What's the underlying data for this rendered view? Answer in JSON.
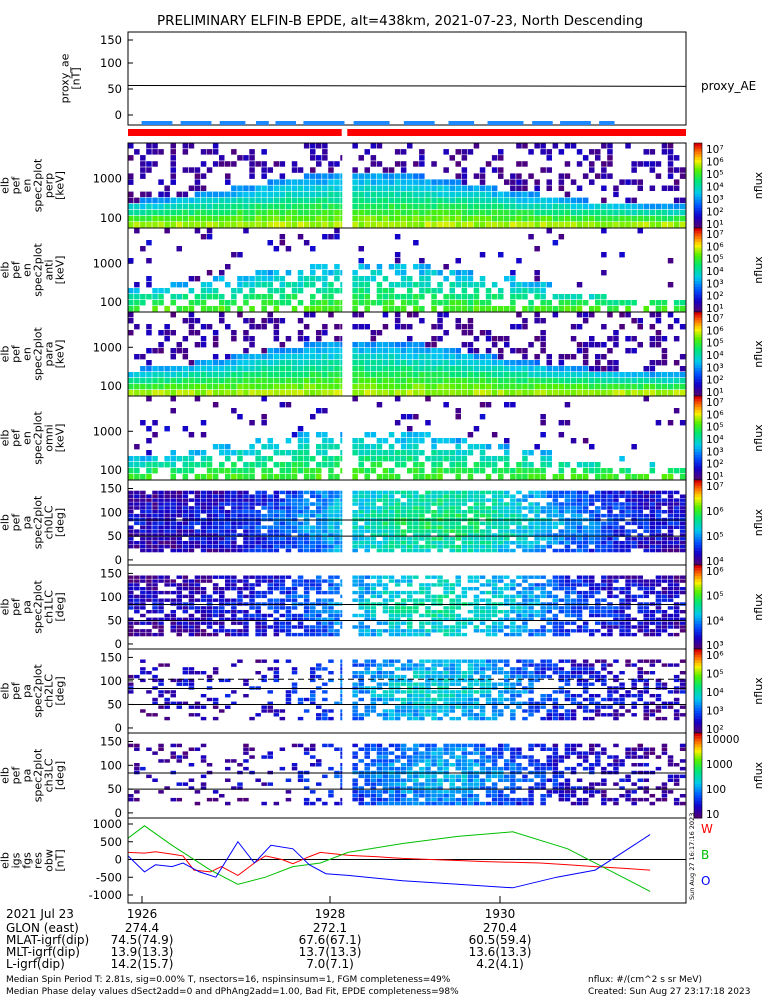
{
  "title": "PRELIMINARY ELFIN-B EPDE, alt=438km, 2021-07-23, North Descending",
  "colors": {
    "red_bar": "#ff0000",
    "blue_bar": "#1e88ff",
    "ae_line": "#000000"
  },
  "chart_data": [
    {
      "id": "proxy_ae",
      "type": "line",
      "ylabel_lines": [
        "proxy_ae",
        "[nT]"
      ],
      "legend": "proxy_AE",
      "y_ticks": [
        "150",
        "100",
        "50",
        "0"
      ],
      "ylim": [
        -15,
        155
      ],
      "series": [
        {
          "values_start": 52,
          "values_end": 50
        }
      ]
    },
    {
      "id": "pef_en_perp",
      "type": "heatmap",
      "ylabel_lines": [
        "elb",
        "pef",
        "en",
        "spec2plot",
        "perp",
        "[keV]"
      ],
      "y_ticks": [
        "1000",
        "100"
      ],
      "colorbar_ticks": [
        "10⁷",
        "10⁶",
        "10⁵",
        "10⁴",
        "10³",
        "10²",
        "10¹"
      ],
      "colorbar_label": "nflux"
    },
    {
      "id": "pef_en_anti",
      "type": "heatmap",
      "ylabel_lines": [
        "elb",
        "pef",
        "en",
        "spec2plot",
        "anti",
        "[keV]"
      ],
      "y_ticks": [
        "1000",
        "100"
      ],
      "colorbar_ticks": [
        "10⁷",
        "10⁶",
        "10⁵",
        "10⁴",
        "10³",
        "10²",
        "10¹"
      ],
      "colorbar_label": "nflux"
    },
    {
      "id": "pef_en_para",
      "type": "heatmap",
      "ylabel_lines": [
        "elb",
        "pef",
        "en",
        "spec2plot",
        "para",
        "[keV]"
      ],
      "y_ticks": [
        "1000",
        "100"
      ],
      "colorbar_ticks": [
        "10⁷",
        "10⁶",
        "10⁵",
        "10⁴",
        "10³",
        "10²",
        "10¹"
      ],
      "colorbar_label": "nflux"
    },
    {
      "id": "pef_en_omni",
      "type": "heatmap",
      "ylabel_lines": [
        "elb",
        "pef",
        "en",
        "spec2plot",
        "omni",
        "[keV]"
      ],
      "y_ticks": [
        "1000",
        "100"
      ],
      "colorbar_ticks": [
        "10⁷",
        "10⁶",
        "10⁵",
        "10⁴",
        "10³",
        "10²",
        "10¹"
      ],
      "colorbar_label": "nflux"
    },
    {
      "id": "pa_ch0",
      "type": "heatmap",
      "ylabel_lines": [
        "elb",
        "pef",
        "pa",
        "spec2plot",
        "ch0LC",
        "[deg]"
      ],
      "y_ticks": [
        "150",
        "100",
        "50",
        "0"
      ],
      "colorbar_ticks": [
        "10⁷",
        "10⁶",
        "10⁵",
        "10⁴"
      ],
      "colorbar_label": "nflux"
    },
    {
      "id": "pa_ch1",
      "type": "heatmap",
      "ylabel_lines": [
        "elb",
        "pef",
        "pa",
        "spec2plot",
        "ch1LC",
        "[deg]"
      ],
      "y_ticks": [
        "150",
        "100",
        "50",
        "0"
      ],
      "colorbar_ticks": [
        "10⁶",
        "10⁵",
        "10⁴",
        "10³"
      ],
      "colorbar_label": "nflux"
    },
    {
      "id": "pa_ch2",
      "type": "heatmap",
      "ylabel_lines": [
        "elb",
        "pef",
        "pa",
        "spec2plot",
        "ch2LC",
        "[deg]"
      ],
      "y_ticks": [
        "150",
        "100",
        "50",
        "0"
      ],
      "colorbar_ticks": [
        "10⁶",
        "10⁵",
        "10⁴",
        "10³",
        "10²"
      ],
      "colorbar_label": "nflux"
    },
    {
      "id": "pa_ch3",
      "type": "heatmap",
      "ylabel_lines": [
        "elb",
        "pef",
        "pa",
        "spec2plot",
        "ch3LC",
        "[deg]"
      ],
      "y_ticks": [
        "150",
        "100",
        "50",
        "0"
      ],
      "colorbar_ticks": [
        "10000",
        "1000",
        "100",
        "10"
      ],
      "colorbar_label": "nflux"
    },
    {
      "id": "dB",
      "type": "line",
      "ylabel_lines": [
        "elb",
        "igs",
        "fgs",
        "res",
        "obw",
        "[nT]"
      ],
      "y_ticks": [
        "1000",
        "500",
        "0",
        "-500",
        "-1000"
      ],
      "ylim": [
        -1300,
        1050
      ],
      "legend": [
        "W",
        "B",
        "O"
      ],
      "side_label": "Sun Aug 27 16:17:16 2023",
      "series": [
        {
          "name": "W",
          "color": "#ff0000",
          "x": [
            0.0,
            0.03,
            0.05,
            0.08,
            0.1,
            0.12,
            0.15,
            0.17,
            0.2,
            0.23,
            0.25,
            0.28,
            0.3,
            0.33,
            0.35,
            0.38,
            0.4,
            0.42,
            0.45,
            0.48,
            0.5,
            0.55,
            0.6,
            0.65,
            0.7,
            0.75,
            0.8,
            0.85,
            0.9,
            0.95
          ],
          "y": [
            200,
            180,
            220,
            150,
            100,
            -300,
            -350,
            -200,
            -450,
            -100,
            100,
            0,
            -120,
            80,
            200,
            150,
            120,
            100,
            80,
            50,
            30,
            0,
            -30,
            -60,
            -80,
            -100,
            -150,
            -200,
            -250,
            -300
          ]
        },
        {
          "name": "B",
          "color": "#00c000",
          "x": [
            0.0,
            0.03,
            0.08,
            0.15,
            0.2,
            0.25,
            0.3,
            0.35,
            0.4,
            0.5,
            0.6,
            0.7,
            0.8,
            0.95
          ],
          "y": [
            600,
            950,
            400,
            -300,
            -700,
            -500,
            -200,
            -100,
            200,
            450,
            650,
            780,
            300,
            -900
          ]
        },
        {
          "name": "O",
          "color": "#0000ff",
          "x": [
            0.0,
            0.03,
            0.05,
            0.08,
            0.1,
            0.13,
            0.16,
            0.2,
            0.23,
            0.26,
            0.3,
            0.33,
            0.36,
            0.4,
            0.5,
            0.6,
            0.7,
            0.78,
            0.85,
            0.9,
            0.95
          ],
          "y": [
            100,
            -350,
            -150,
            -200,
            -100,
            -350,
            -500,
            500,
            -100,
            400,
            300,
            -150,
            -400,
            -450,
            -600,
            -700,
            -800,
            -500,
            -300,
            200,
            700
          ]
        }
      ]
    }
  ],
  "time_axis": {
    "label": "2021 Jul 23",
    "ticks": [
      "1926",
      "1928",
      "1930"
    ],
    "rows": [
      {
        "label": "GLON (east)",
        "values": [
          "274.4",
          "272.1",
          "270.4"
        ]
      },
      {
        "label": "MLAT-igrf(dip)",
        "values": [
          "74.5(74.9)",
          "67.6(67.1)",
          "60.5(59.4)"
        ]
      },
      {
        "label": "MLT-igrf(dip)",
        "values": [
          "13.9(13.3)",
          "13.7(13.3)",
          "13.6(13.3)"
        ]
      },
      {
        "label": "L-igrf(dip)",
        "values": [
          "14.2(15.7)",
          "7.0(7.1)",
          "4.2(4.1)"
        ]
      }
    ]
  },
  "footer": {
    "left_line1": "Median Spin Period T: 2.81s, sig=0.00% T, nsectors=16, nspinsinsum=1, FGM completeness=49%",
    "left_line2": "Median Phase delay values dSect2add=0 and dPhAng2add=1.00, Bad Fit, EPDE completeness=98%",
    "right_line1": "nflux: #/(cm^2 s sr MeV)",
    "right_line2": "Created: Sun Aug 27 23:17:18 2023"
  }
}
